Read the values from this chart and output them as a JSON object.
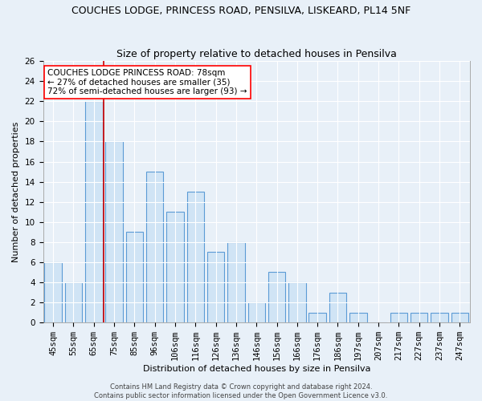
{
  "title": "COUCHES LODGE, PRINCESS ROAD, PENSILVA, LISKEARD, PL14 5NF",
  "subtitle": "Size of property relative to detached houses in Pensilva",
  "xlabel": "Distribution of detached houses by size in Pensilva",
  "ylabel": "Number of detached properties",
  "categories": [
    "45sqm",
    "55sqm",
    "65sqm",
    "75sqm",
    "85sqm",
    "96sqm",
    "106sqm",
    "116sqm",
    "126sqm",
    "136sqm",
    "146sqm",
    "156sqm",
    "166sqm",
    "176sqm",
    "186sqm",
    "197sqm",
    "207sqm",
    "217sqm",
    "227sqm",
    "237sqm",
    "247sqm"
  ],
  "values": [
    6,
    4,
    22,
    18,
    9,
    15,
    11,
    13,
    7,
    8,
    2,
    5,
    4,
    1,
    3,
    1,
    0,
    1,
    1,
    1,
    1
  ],
  "bar_color": "#d0e4f5",
  "bar_edge_color": "#5b9bd5",
  "vline_x": 2.5,
  "vline_color": "#cc0000",
  "annotation_text": "COUCHES LODGE PRINCESS ROAD: 78sqm\n← 27% of detached houses are smaller (35)\n72% of semi-detached houses are larger (93) →",
  "annotation_box_color": "white",
  "annotation_box_edge_color": "red",
  "ylim": [
    0,
    26
  ],
  "yticks": [
    0,
    2,
    4,
    6,
    8,
    10,
    12,
    14,
    16,
    18,
    20,
    22,
    24,
    26
  ],
  "footer_line1": "Contains HM Land Registry data © Crown copyright and database right 2024.",
  "footer_line2": "Contains public sector information licensed under the Open Government Licence v3.0.",
  "background_color": "#e8f0f8",
  "grid_color": "white",
  "title_fontsize": 9,
  "subtitle_fontsize": 9,
  "axis_label_fontsize": 8,
  "tick_fontsize": 7.5,
  "annotation_fontsize": 7.5,
  "footer_fontsize": 6
}
